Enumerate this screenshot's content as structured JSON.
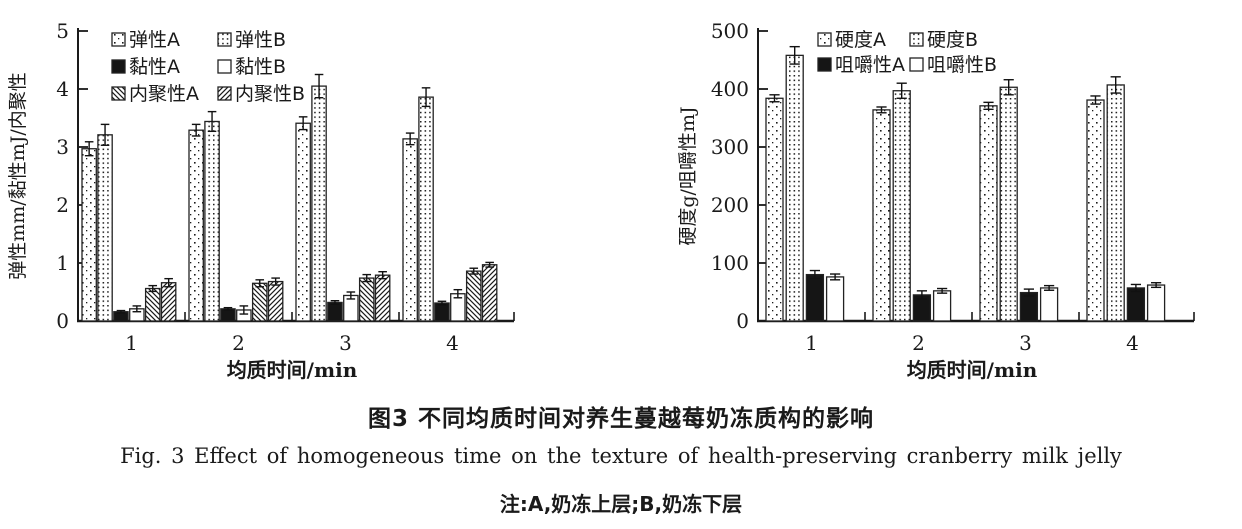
{
  "figure": {
    "caption_cn": "图3  不同均质时间对养生蔓越莓奶冻质构的影响",
    "caption_en": "Fig. 3  Effect of homogeneous time on the texture of health-preserving cranberry milk jelly",
    "note": "注:A,奶冻上层;B,奶冻下层"
  },
  "chart_data": [
    {
      "type": "bar",
      "title": "",
      "xlabel": "均质时间/min",
      "ylabel": "弹性mm/黏性mJ/内聚性",
      "categories": [
        "1",
        "2",
        "3",
        "4"
      ],
      "ylim": [
        0,
        5
      ],
      "yticks": [
        0,
        1,
        2,
        3,
        4,
        5
      ],
      "grid": false,
      "legend_position": "top-inside",
      "legend_columns": 2,
      "error_bars": true,
      "series": [
        {
          "name": "弹性A",
          "pattern": "dots-sparse",
          "values": [
            2.97,
            3.29,
            3.41,
            3.14
          ],
          "errors": [
            0.12,
            0.1,
            0.11,
            0.1
          ]
        },
        {
          "name": "弹性B",
          "pattern": "dots-dense",
          "values": [
            3.21,
            3.44,
            4.05,
            3.86
          ],
          "errors": [
            0.18,
            0.17,
            0.2,
            0.16
          ]
        },
        {
          "name": "黏性A",
          "pattern": "solid-black",
          "values": [
            0.16,
            0.21,
            0.32,
            0.31
          ],
          "errors": [
            0.02,
            0.02,
            0.03,
            0.03
          ]
        },
        {
          "name": "黏性B",
          "pattern": "white",
          "values": [
            0.21,
            0.19,
            0.44,
            0.47
          ],
          "errors": [
            0.05,
            0.07,
            0.06,
            0.07
          ]
        },
        {
          "name": "内聚性A",
          "pattern": "hatch-back",
          "values": [
            0.56,
            0.65,
            0.74,
            0.86
          ],
          "errors": [
            0.05,
            0.06,
            0.06,
            0.05
          ]
        },
        {
          "name": "内聚性B",
          "pattern": "hatch-fwd",
          "values": [
            0.66,
            0.68,
            0.79,
            0.97
          ],
          "errors": [
            0.07,
            0.06,
            0.06,
            0.04
          ]
        }
      ]
    },
    {
      "type": "bar",
      "title": "",
      "xlabel": "均质时间/min",
      "ylabel": "硬度g/咀嚼性mJ",
      "categories": [
        "1",
        "2",
        "3",
        "4"
      ],
      "ylim": [
        0,
        500
      ],
      "yticks": [
        0,
        100,
        200,
        300,
        400,
        500
      ],
      "grid": false,
      "legend_position": "top-inside",
      "legend_columns": 2,
      "error_bars": true,
      "series": [
        {
          "name": "硬度A",
          "pattern": "dots-sparse",
          "values": [
            384,
            364,
            371,
            381
          ],
          "errors": [
            6,
            5,
            6,
            7
          ]
        },
        {
          "name": "硬度B",
          "pattern": "dots-dense",
          "values": [
            458,
            397,
            403,
            407
          ],
          "errors": [
            15,
            13,
            13,
            14
          ]
        },
        {
          "name": "咀嚼性A",
          "pattern": "solid-black",
          "values": [
            80,
            45,
            49,
            57
          ],
          "errors": [
            7,
            7,
            6,
            6
          ]
        },
        {
          "name": "咀嚼性B",
          "pattern": "white",
          "values": [
            76,
            52,
            57,
            62
          ],
          "errors": [
            5,
            4,
            4,
            4
          ]
        }
      ]
    }
  ],
  "style": {
    "ink_color": "#1a1a1a",
    "background_color": "#ffffff"
  }
}
